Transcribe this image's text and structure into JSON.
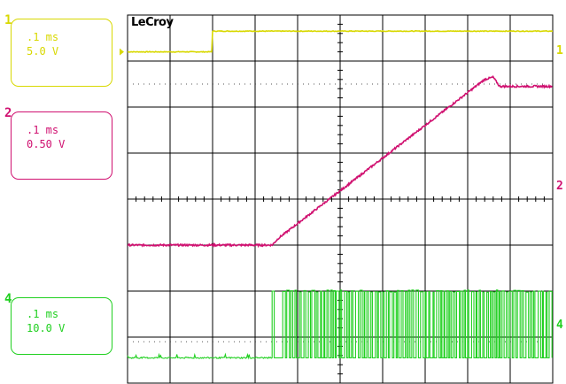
{
  "brand": "LeCroy",
  "colors": {
    "ch1": "#d8d800",
    "ch2": "#d01070",
    "ch4": "#20d020",
    "grid": "#000000"
  },
  "channels": [
    {
      "id": "1",
      "timebase": ".1 ms",
      "scale": "5.0 V"
    },
    {
      "id": "2",
      "timebase": ".1 ms",
      "scale": "0.50 V"
    },
    {
      "id": "4",
      "timebase": ".1 ms",
      "scale": "10.0 V"
    }
  ],
  "chart_data": {
    "type": "line",
    "grid": {
      "x_divisions": 10,
      "y_divisions": 8,
      "dotted_levels": true
    },
    "time_per_div": ".1 ms",
    "series": [
      {
        "channel": "1",
        "points": [
          [
            0,
            7.2
          ],
          [
            2.0,
            7.2
          ],
          [
            2.0,
            7.65
          ],
          [
            10,
            7.65
          ]
        ]
      },
      {
        "channel": "2",
        "points": [
          [
            0,
            3.0
          ],
          [
            3.4,
            3.0
          ],
          [
            3.55,
            3.15
          ],
          [
            3.65,
            3.22
          ],
          [
            8.4,
            6.6
          ],
          [
            8.6,
            6.65
          ],
          [
            8.75,
            6.45
          ],
          [
            10,
            6.45
          ]
        ]
      },
      {
        "channel": "4",
        "ramp_start": 3.4,
        "low_level": 0.55,
        "high_level": 2.0,
        "switch_start": 3.65,
        "switch_end": 10
      }
    ]
  }
}
